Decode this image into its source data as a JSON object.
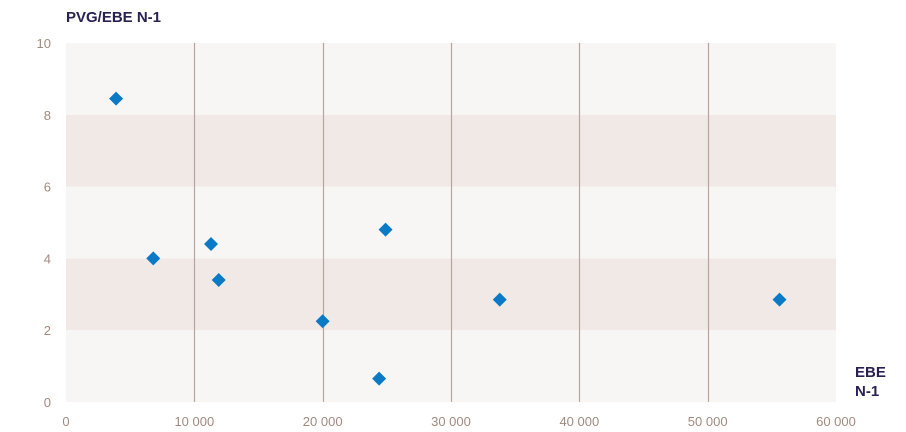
{
  "chart_data": {
    "type": "scatter",
    "ylabel": "PVG/EBE N-1",
    "xlabel_lines": [
      "EBE",
      "N-1"
    ],
    "xlim": [
      0,
      60000
    ],
    "ylim": [
      0,
      10
    ],
    "x_ticks": [
      0,
      10000,
      20000,
      30000,
      40000,
      50000,
      60000
    ],
    "x_tick_labels": [
      "0",
      "10 000",
      "20 000",
      "30 000",
      "40 000",
      "50 000",
      "60 000"
    ],
    "y_ticks": [
      0,
      2,
      4,
      6,
      8,
      10
    ],
    "y_tick_labels": [
      "0",
      "2",
      "4",
      "6",
      "8",
      "10"
    ],
    "grid": "vertical lines at x ticks, alternating horizontal bands",
    "marker": "diamond",
    "colors": {
      "point": "#0a7ac7",
      "band_dark": "#f1e9e6",
      "band_light": "#f8f6f5",
      "gridline": "#b8a49a",
      "tick_text": "#a08a80",
      "title_text": "#2a2150"
    },
    "points": [
      {
        "x": 3900,
        "y": 8.45
      },
      {
        "x": 6800,
        "y": 4.0
      },
      {
        "x": 11300,
        "y": 4.4
      },
      {
        "x": 11900,
        "y": 3.4
      },
      {
        "x": 20000,
        "y": 2.25
      },
      {
        "x": 24900,
        "y": 4.8
      },
      {
        "x": 24400,
        "y": 0.65
      },
      {
        "x": 33800,
        "y": 2.85
      },
      {
        "x": 55600,
        "y": 2.85
      }
    ]
  }
}
